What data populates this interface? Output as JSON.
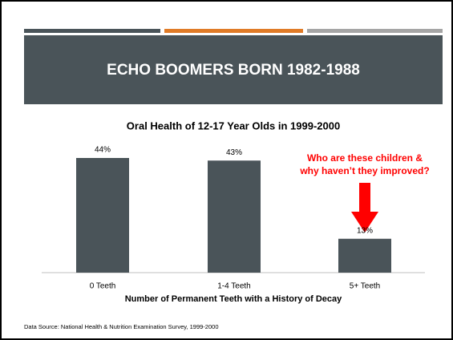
{
  "slide": {
    "heading": "ECHO BOOMERS BORN 1982-1988"
  },
  "chart_data": {
    "type": "bar",
    "title": "Oral Health of 12-17 Year Olds in 1999-2000",
    "categories": [
      "0 Teeth",
      "1-4 Teeth",
      "5+ Teeth"
    ],
    "values": [
      44,
      43,
      13
    ],
    "value_labels": [
      "44%",
      "43%",
      "13%"
    ],
    "color": "#4a5459",
    "x_label": "Number of Permanent Teeth with a History of Decay",
    "annotation": [
      "Who are these children &",
      "why haven’t they improved?"
    ],
    "source": "Data Source: National Health & Nutrition Examination Survey, 1999-2000"
  }
}
